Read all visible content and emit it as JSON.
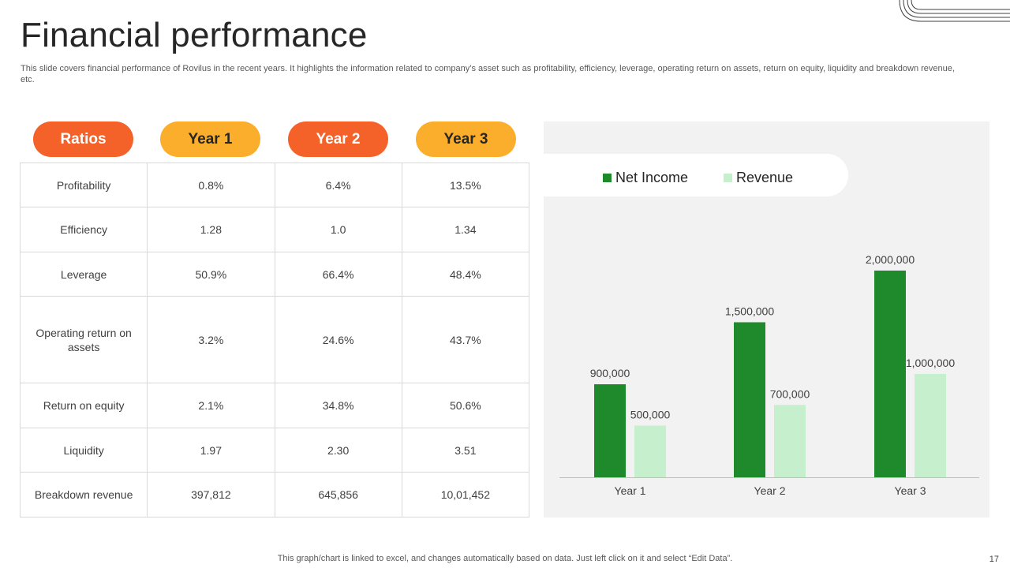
{
  "title": "Financial performance",
  "subtitle": "This slide covers financial performance of Rovilus in the recent years. It highlights the information related to company’s asset such as profitability, efficiency,  leverage, operating return on assets, return on equity, liquidity and breakdown revenue, etc.",
  "table": {
    "headers": [
      "Ratios",
      "Year 1",
      "Year 2",
      "Year 3"
    ],
    "rows": [
      [
        "Profitability",
        "0.8%",
        "6.4%",
        "13.5%"
      ],
      [
        "Efficiency",
        "1.28",
        "1.0",
        "1.34"
      ],
      [
        "Leverage",
        "50.9%",
        "66.4%",
        "48.4%"
      ],
      [
        "Operating return on assets",
        "3.2%",
        "24.6%",
        "43.7%"
      ],
      [
        "Return on equity",
        "2.1%",
        "34.8%",
        "50.6%"
      ],
      [
        "Liquidity",
        "1.97",
        "2.30",
        "3.51"
      ],
      [
        "Breakdown revenue",
        "397,812",
        "645,856",
        "10,01,452"
      ]
    ]
  },
  "colors": {
    "orange": "#f4622a",
    "yellow": "#fbae2b",
    "net_income": "#1e8a2c",
    "revenue": "#c6efcd"
  },
  "chart_data": {
    "type": "bar",
    "title": "",
    "xlabel": "",
    "ylabel": "",
    "categories": [
      "Year 1",
      "Year 2",
      "Year 3"
    ],
    "series": [
      {
        "name": "Net Income",
        "values": [
          900000,
          1500000,
          2000000
        ],
        "labels": [
          "900,000",
          "1,500,000",
          "2,000,000"
        ]
      },
      {
        "name": "Revenue",
        "values": [
          500000,
          700000,
          1000000
        ],
        "labels": [
          "500,000",
          "700,000",
          "1,000,000"
        ]
      }
    ],
    "ylim": [
      0,
      2400000
    ],
    "grid": false,
    "legend_position": "top-left"
  },
  "footnote": "This graph/chart is linked to excel,  and changes automatically based on data. Just left click on it and select “Edit Data”.",
  "page_number": "17"
}
